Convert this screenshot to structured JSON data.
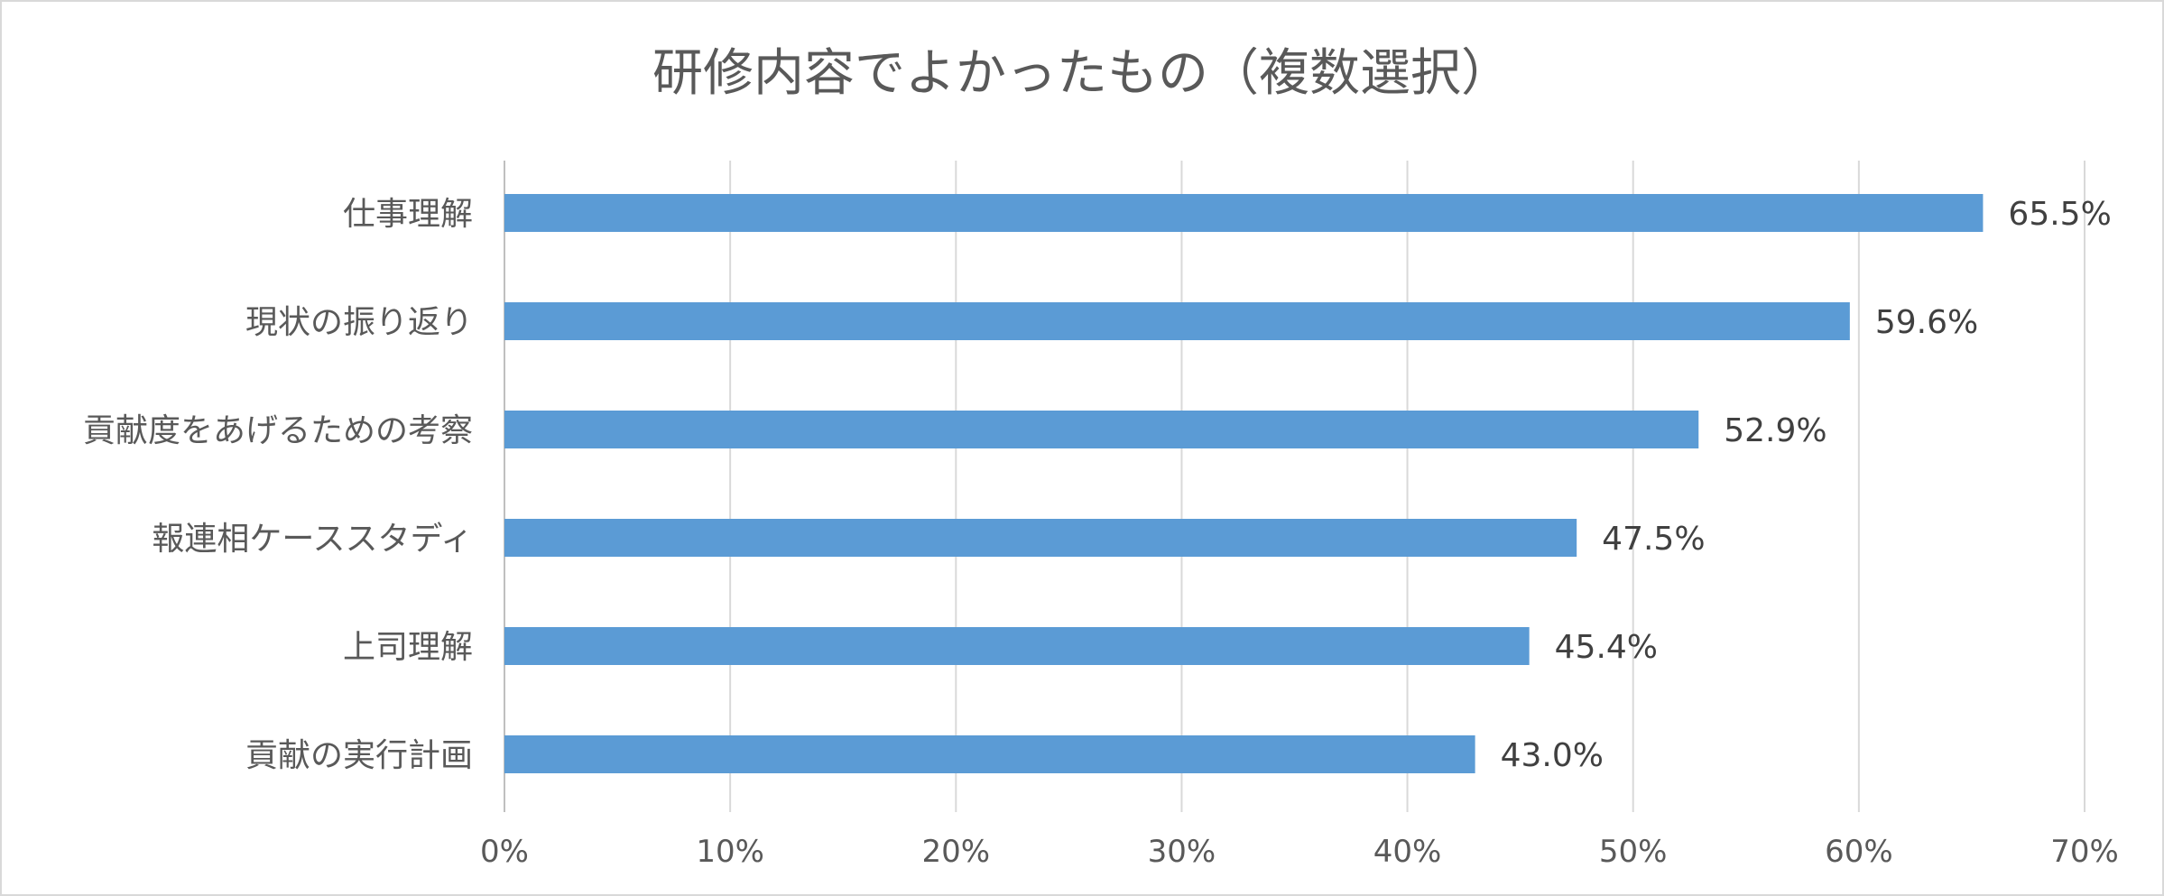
{
  "chart_data": {
    "type": "bar",
    "orientation": "horizontal",
    "title": "研修内容でよかったもの（複数選択）",
    "categories": [
      "仕事理解",
      "現状の振り返り",
      "貢献度をあげるための考察",
      "報連相ケーススタディ",
      "上司理解",
      "貢献の実行計画"
    ],
    "values": [
      65.5,
      59.6,
      52.9,
      47.5,
      45.4,
      43.0
    ],
    "data_labels": [
      "65.5%",
      "59.6%",
      "52.9%",
      "47.5%",
      "45.4%",
      "43.0%"
    ],
    "xlim": [
      0,
      70
    ],
    "x_ticks": [
      0,
      10,
      20,
      30,
      40,
      50,
      60,
      70
    ],
    "x_tick_labels": [
      "0%",
      "10%",
      "20%",
      "30%",
      "40%",
      "50%",
      "60%",
      "70%"
    ],
    "grid": "vertical",
    "legend": "none",
    "bar_color": "#5b9bd5"
  }
}
